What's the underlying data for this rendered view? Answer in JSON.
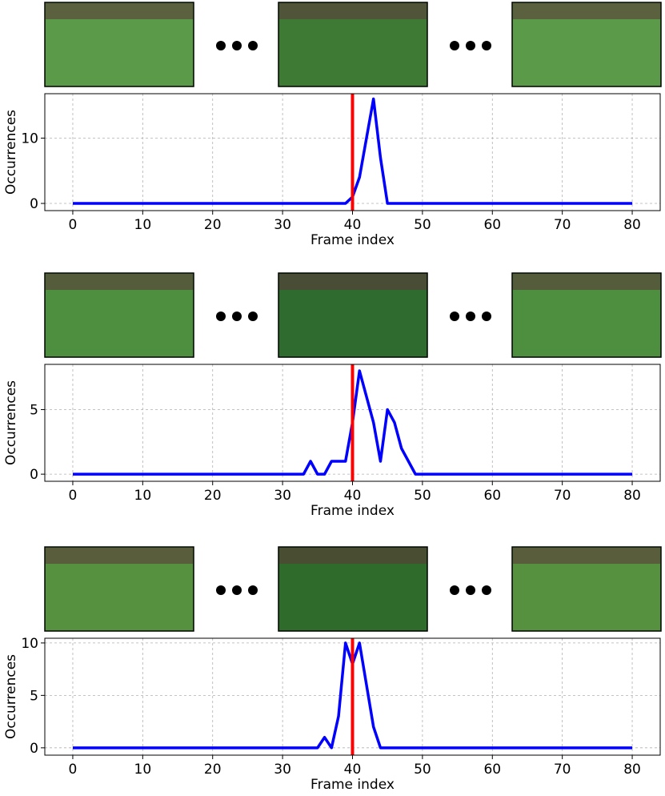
{
  "chart_data": [
    {
      "type": "line",
      "xlabel": "Frame index",
      "ylabel": "Occurrences",
      "x": [
        0,
        39,
        40,
        41,
        42,
        43,
        44,
        45,
        80
      ],
      "values": [
        0,
        0,
        1,
        4,
        10,
        16,
        7,
        0,
        0
      ],
      "color": "#0000ff",
      "vline": {
        "x": 40,
        "color": "#ff0000"
      },
      "xlim": [
        -4,
        84
      ],
      "xticks": [
        0,
        10,
        20,
        30,
        40,
        50,
        60,
        70,
        80
      ],
      "ylim": [
        -1.1,
        16.8
      ],
      "yticks": [
        0,
        10
      ],
      "grid": true
    },
    {
      "type": "line",
      "xlabel": "Frame index",
      "ylabel": "Occurrences",
      "x": [
        0,
        33,
        34,
        35,
        36,
        37,
        38,
        39,
        40,
        41,
        42,
        43,
        44,
        45,
        46,
        47,
        48,
        49,
        80
      ],
      "values": [
        0,
        0,
        1,
        0,
        0,
        1,
        1,
        1,
        4,
        8,
        6,
        4,
        1,
        5,
        4,
        2,
        1,
        0,
        0
      ],
      "color": "#0000ff",
      "vline": {
        "x": 40,
        "color": "#ff0000"
      },
      "xlim": [
        -4,
        84
      ],
      "xticks": [
        0,
        10,
        20,
        30,
        40,
        50,
        60,
        70,
        80
      ],
      "ylim": [
        -0.55,
        8.5
      ],
      "yticks": [
        0,
        5
      ],
      "grid": true
    },
    {
      "type": "line",
      "xlabel": "Frame index",
      "ylabel": "Occurrences",
      "x": [
        0,
        35,
        36,
        37,
        38,
        39,
        40,
        41,
        42,
        43,
        44,
        80
      ],
      "values": [
        0,
        0,
        1,
        0,
        3,
        10,
        8,
        10,
        6,
        2,
        0,
        0
      ],
      "color": "#0000ff",
      "vline": {
        "x": 40,
        "color": "#ff0000"
      },
      "xlim": [
        -4,
        84
      ],
      "xticks": [
        0,
        10,
        20,
        30,
        40,
        50,
        60,
        70,
        80
      ],
      "ylim": [
        -0.7,
        10.45
      ],
      "yticks": [
        0,
        5,
        10
      ],
      "grid": true
    }
  ]
}
